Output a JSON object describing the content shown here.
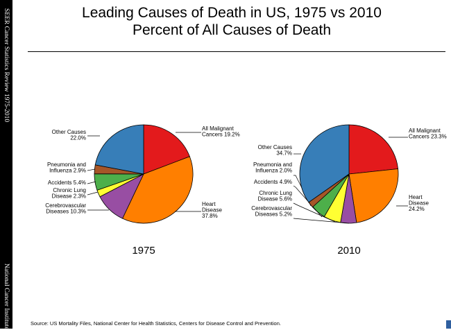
{
  "side_text": {
    "top": "SEER Cancer Statistics Review 1975-2010",
    "bottom": "National Cancer Institute"
  },
  "title": {
    "line1": "Leading Causes of Death in US, 1975 vs 2010",
    "line2": "Percent of All Causes of Death"
  },
  "source": "Source: US Mortality Files, National Center for Health Statistics, Centers for Disease Control and Prevention.",
  "chart_data": [
    {
      "type": "pie",
      "year_label": "1975",
      "slices": [
        {
          "name": "All Malignant Cancers",
          "value": 19.2,
          "label_lines": [
            "All Malignant",
            "Cancers 19.2%"
          ],
          "color": "#e31a1c"
        },
        {
          "name": "Heart Disease",
          "value": 37.8,
          "label_lines": [
            "Heart",
            "Disease",
            "37.8%"
          ],
          "color": "#ff7f00"
        },
        {
          "name": "Cerebrovascular Diseases",
          "value": 10.3,
          "label_lines": [
            "Cerebrovascular",
            "Diseases 10.3%"
          ],
          "color": "#984ea3"
        },
        {
          "name": "Chronic Lung Disease",
          "value": 2.3,
          "label_lines": [
            "Chronic Lung",
            "Disease 2.3%"
          ],
          "color": "#ffff33"
        },
        {
          "name": "Accidents",
          "value": 5.4,
          "label_lines": [
            "Accidents 5.4%"
          ],
          "color": "#4daf4a"
        },
        {
          "name": "Pneumonia and Influenza",
          "value": 2.9,
          "label_lines": [
            "Pneumonia and",
            "Influenza 2.9%"
          ],
          "color": "#a65628"
        },
        {
          "name": "Other Causes",
          "value": 22.0,
          "label_lines": [
            "Other Causes",
            "22.0%"
          ],
          "color": "#377eb8"
        }
      ]
    },
    {
      "type": "pie",
      "year_label": "2010",
      "slices": [
        {
          "name": "All Malignant Cancers",
          "value": 23.3,
          "label_lines": [
            "All Malignant",
            "Cancers 23.3%"
          ],
          "color": "#e31a1c"
        },
        {
          "name": "Heart Disease",
          "value": 24.2,
          "label_lines": [
            "Heart",
            "Disease",
            "24.2%"
          ],
          "color": "#ff7f00"
        },
        {
          "name": "Cerebrovascular Diseases",
          "value": 5.2,
          "label_lines": [
            "Cerebrovascular",
            "Diseases 5.2%"
          ],
          "color": "#984ea3"
        },
        {
          "name": "Chronic Lung Disease",
          "value": 5.6,
          "label_lines": [
            "Chronic Lung",
            "Disease 5.6%"
          ],
          "color": "#ffff33"
        },
        {
          "name": "Accidents",
          "value": 4.9,
          "label_lines": [
            "Accidents 4.9%"
          ],
          "color": "#4daf4a"
        },
        {
          "name": "Pneumonia and Influenza",
          "value": 2.0,
          "label_lines": [
            "Pneumonia and",
            "Influenza 2.0%"
          ],
          "color": "#a65628"
        },
        {
          "name": "Other Causes",
          "value": 34.7,
          "label_lines": [
            "Other Causes",
            "34.7%"
          ],
          "color": "#377eb8"
        }
      ]
    }
  ]
}
